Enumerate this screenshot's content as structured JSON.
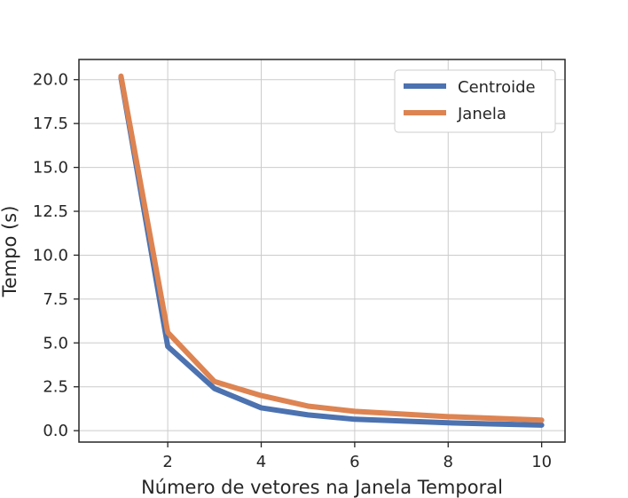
{
  "chart_data": {
    "type": "line",
    "title": "",
    "xlabel": "Número de vetores na Janela Temporal",
    "ylabel": "Tempo (s)",
    "x": [
      1,
      2,
      3,
      4,
      5,
      6,
      7,
      8,
      9,
      10
    ],
    "xlim": [
      0.1,
      10.5
    ],
    "ylim": [
      -0.65,
      21.15
    ],
    "xticks": [
      2,
      4,
      6,
      8,
      10
    ],
    "xtick_labels": [
      "2",
      "4",
      "6",
      "8",
      "10"
    ],
    "yticks": [
      0.0,
      2.5,
      5.0,
      7.5,
      10.0,
      12.5,
      15.0,
      17.5,
      20.0
    ],
    "ytick_labels": [
      "0.0",
      "2.5",
      "5.0",
      "7.5",
      "10.0",
      "12.5",
      "15.0",
      "17.5",
      "20.0"
    ],
    "grid": true,
    "legend_position": "top-right",
    "series": [
      {
        "name": "Centroide",
        "color": "#4c72b0",
        "values": [
          20.1,
          4.8,
          2.4,
          1.3,
          0.9,
          0.65,
          0.55,
          0.45,
          0.38,
          0.32
        ]
      },
      {
        "name": "Janela",
        "color": "#dd8452",
        "values": [
          20.2,
          5.6,
          2.8,
          2.0,
          1.4,
          1.1,
          0.95,
          0.8,
          0.7,
          0.6
        ]
      }
    ]
  }
}
